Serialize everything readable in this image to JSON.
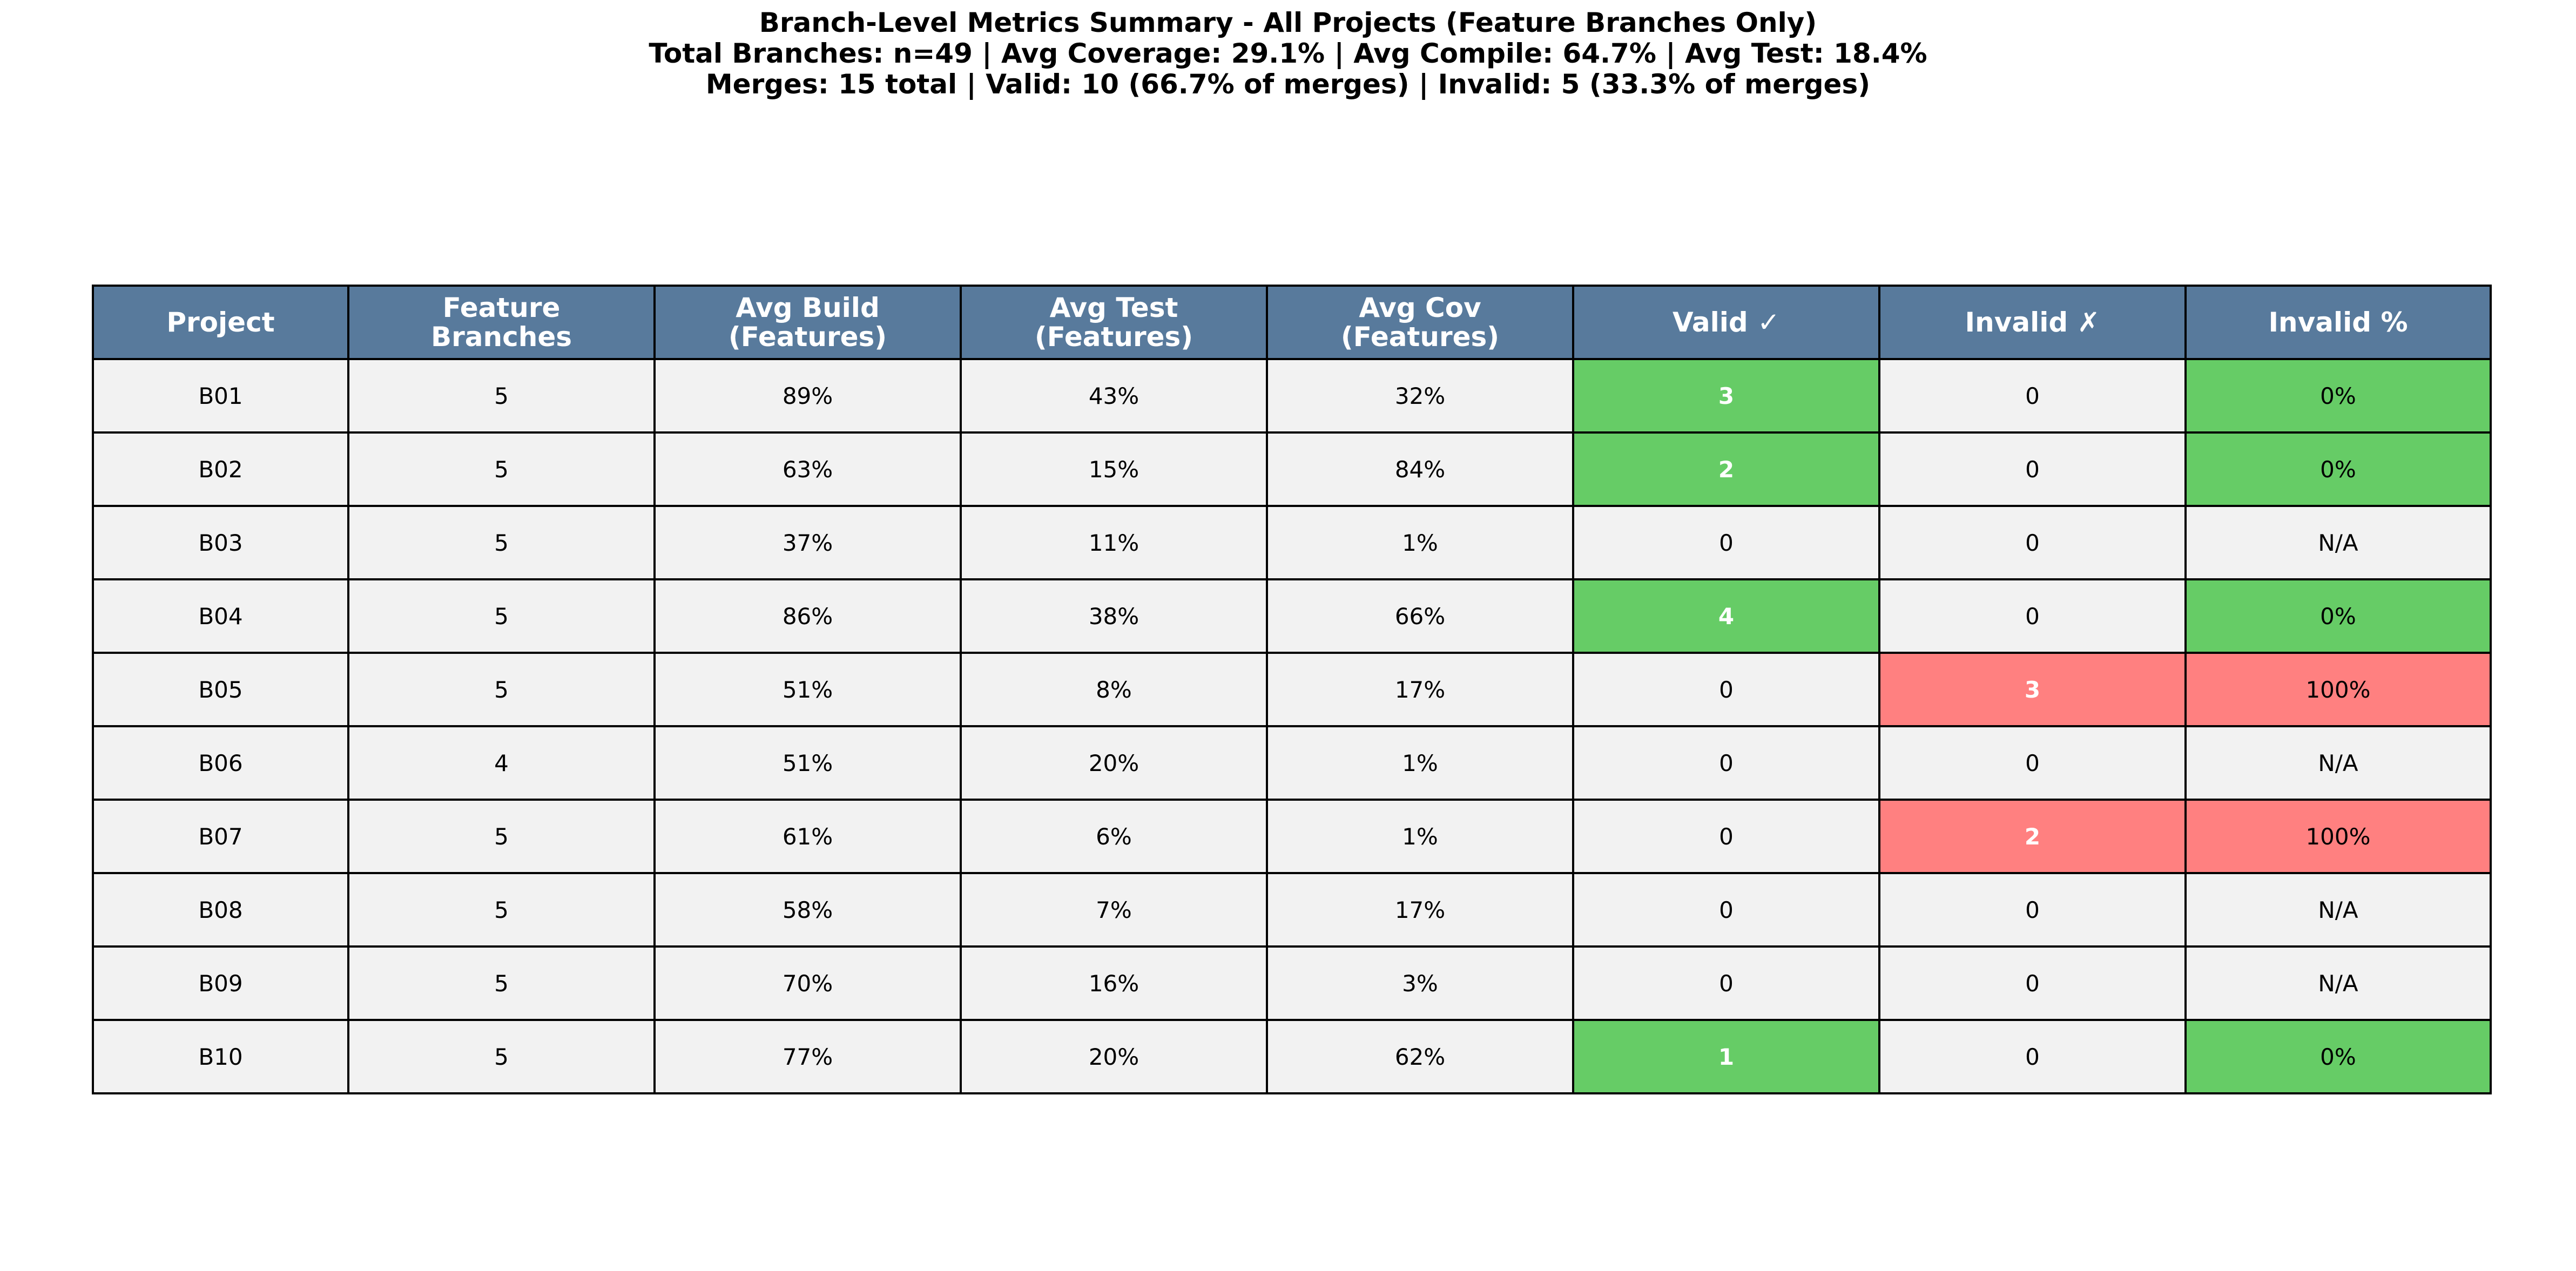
{
  "title": {
    "line1": "Branch-Level Metrics Summary - All Projects (Feature Branches Only)",
    "line2": "Total Branches: n=49 | Avg Coverage: 29.1% | Avg Compile: 64.7% | Avg Test: 18.4%",
    "line3": "Merges: 15 total | Valid: 10 (66.7% of merges) | Invalid: 5 (33.3% of merges)"
  },
  "colors": {
    "header_bg": "#587a9c",
    "cell_bg": "#f2f2f2",
    "valid_highlight": "#66cc66",
    "invalid_highlight": "#ff8080"
  },
  "chart_data": {
    "type": "table",
    "title": "Branch-Level Metrics Summary - All Projects (Feature Branches Only)",
    "columns": [
      [
        "Project"
      ],
      [
        "Feature",
        "Branches"
      ],
      [
        "Avg Build",
        "(Features)"
      ],
      [
        "Avg Test",
        "(Features)"
      ],
      [
        "Avg Cov",
        "(Features)"
      ],
      [
        "Valid ✓"
      ],
      [
        "Invalid ✗"
      ],
      [
        "Invalid %"
      ]
    ],
    "rows": [
      [
        "B01",
        "5",
        "89%",
        "43%",
        "32%",
        "3",
        "0",
        "0%"
      ],
      [
        "B02",
        "5",
        "63%",
        "15%",
        "84%",
        "2",
        "0",
        "0%"
      ],
      [
        "B03",
        "5",
        "37%",
        "11%",
        "1%",
        "0",
        "0",
        "N/A"
      ],
      [
        "B04",
        "5",
        "86%",
        "38%",
        "66%",
        "4",
        "0",
        "0%"
      ],
      [
        "B05",
        "5",
        "51%",
        "8%",
        "17%",
        "0",
        "3",
        "100%"
      ],
      [
        "B06",
        "4",
        "51%",
        "20%",
        "1%",
        "0",
        "0",
        "N/A"
      ],
      [
        "B07",
        "5",
        "61%",
        "6%",
        "1%",
        "0",
        "2",
        "100%"
      ],
      [
        "B08",
        "5",
        "58%",
        "7%",
        "17%",
        "0",
        "0",
        "N/A"
      ],
      [
        "B09",
        "5",
        "70%",
        "16%",
        "3%",
        "0",
        "0",
        "N/A"
      ],
      [
        "B10",
        "5",
        "77%",
        "20%",
        "62%",
        "1",
        "0",
        "0%"
      ]
    ]
  }
}
